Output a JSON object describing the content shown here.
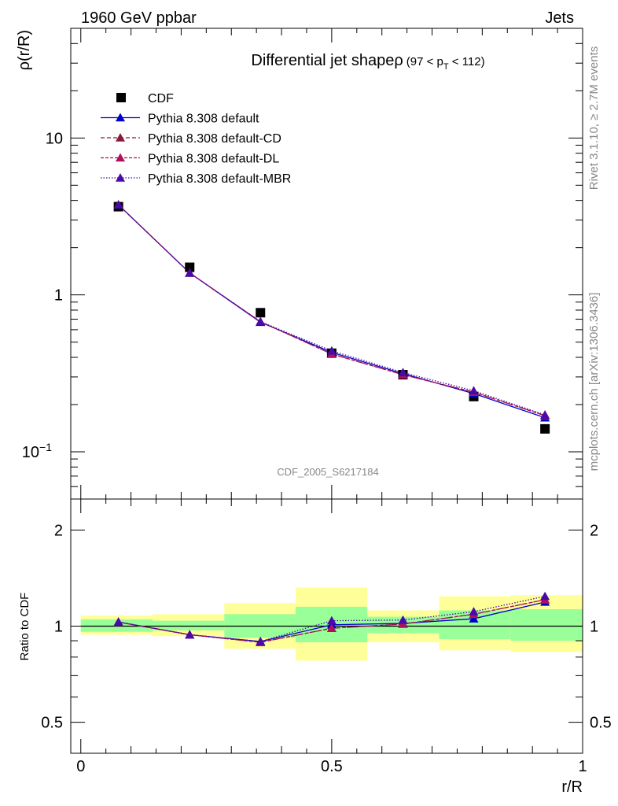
{
  "header": {
    "left": "1960 GeV ppbar",
    "right": "Jets"
  },
  "side_labels": {
    "top": "Rivet 3.1.10, ≥ 2.7M events",
    "bottom": "mcplots.cern.ch [arXiv:1306.3436]"
  },
  "watermark": "CDF_2005_S6217184",
  "chart_data": [
    {
      "type": "scatter",
      "title": "Differential jet shapeρ",
      "title_cut": "(97 < p",
      "title_sub": "T",
      "title_cut_end": " < 112)",
      "ylabel": "ρ(r/R)",
      "yscale": "log",
      "ylim": [
        0.05,
        50
      ],
      "xlim": [
        -0.02,
        1.0
      ],
      "y_ticks": [
        {
          "value": 10,
          "label": "10"
        },
        {
          "value": 1,
          "label": "1"
        },
        {
          "value": 0.1,
          "label": "10",
          "exp": "−1"
        }
      ],
      "x": [
        0.075,
        0.217,
        0.358,
        0.5,
        0.642,
        0.783,
        0.925
      ],
      "series": [
        {
          "name": "CDF",
          "marker": "square",
          "color": "#000000",
          "values": [
            3.65,
            1.5,
            0.77,
            0.425,
            0.31,
            0.225,
            0.14
          ]
        },
        {
          "name": "Pythia 8.308 default",
          "marker": "triangle",
          "color": "#0000cc",
          "dash": "solid",
          "values": [
            3.75,
            1.38,
            0.67,
            0.43,
            0.315,
            0.235,
            0.165
          ]
        },
        {
          "name": "Pythia 8.308 default-CD",
          "marker": "triangle",
          "color": "#8b1a3a",
          "dash": "5,3",
          "values": [
            3.75,
            1.38,
            0.675,
            0.42,
            0.31,
            0.24,
            0.17
          ]
        },
        {
          "name": "Pythia 8.308 default-DL",
          "marker": "triangle",
          "color": "#b0105a",
          "dash": "4,2",
          "values": [
            3.75,
            1.38,
            0.675,
            0.42,
            0.31,
            0.24,
            0.17
          ]
        },
        {
          "name": "Pythia 8.308 default-MBR",
          "marker": "triangle",
          "color": "#4a0aa8",
          "dash": "1.5,2",
          "values": [
            3.75,
            1.38,
            0.675,
            0.44,
            0.32,
            0.245,
            0.172
          ]
        }
      ]
    },
    {
      "type": "line",
      "ylabel": "Ratio to CDF",
      "xlabel": "r/R",
      "yscale": "log",
      "ylim": [
        0.4,
        2.5
      ],
      "xlim": [
        -0.02,
        1.0
      ],
      "x_ticks": [
        {
          "value": 0,
          "label": "0"
        },
        {
          "value": 0.5,
          "label": "0.5"
        },
        {
          "value": 1,
          "label": "1"
        }
      ],
      "y_ticks": [
        {
          "value": 2,
          "label": "2"
        },
        {
          "value": 1,
          "label": "1"
        },
        {
          "value": 0.5,
          "label": "0.5"
        }
      ],
      "bands": {
        "edges": [
          0.0,
          0.143,
          0.286,
          0.428,
          0.571,
          0.714,
          0.857,
          1.0
        ],
        "yellow": [
          [
            0.94,
            1.08
          ],
          [
            0.93,
            1.09
          ],
          [
            0.85,
            1.18
          ],
          [
            0.78,
            1.32
          ],
          [
            0.89,
            1.12
          ],
          [
            0.84,
            1.24
          ],
          [
            0.83,
            1.25
          ]
        ],
        "green": [
          [
            0.96,
            1.05
          ],
          [
            0.97,
            1.04
          ],
          [
            0.92,
            1.09
          ],
          [
            0.89,
            1.15
          ],
          [
            0.95,
            1.07
          ],
          [
            0.91,
            1.12
          ],
          [
            0.9,
            1.13
          ]
        ]
      },
      "x": [
        0.075,
        0.217,
        0.358,
        0.5,
        0.642,
        0.783,
        0.925
      ],
      "series": [
        {
          "name": "Pythia 8.308 default",
          "color": "#0000cc",
          "dash": "solid",
          "values": [
            1.03,
            0.94,
            0.895,
            1.01,
            1.02,
            1.055,
            1.19
          ]
        },
        {
          "name": "Pythia 8.308 default-CD",
          "color": "#8b1a3a",
          "dash": "5,3",
          "values": [
            1.03,
            0.94,
            0.89,
            0.985,
            1.015,
            1.09,
            1.21
          ]
        },
        {
          "name": "Pythia 8.308 default-DL",
          "color": "#b0105a",
          "dash": "4,2",
          "values": [
            1.03,
            0.94,
            0.89,
            0.985,
            1.015,
            1.09,
            1.21
          ]
        },
        {
          "name": "Pythia 8.308 default-MBR",
          "color": "#4a0aa8",
          "dash": "1.5,2",
          "values": [
            1.03,
            0.94,
            0.895,
            1.04,
            1.045,
            1.11,
            1.24
          ]
        }
      ]
    }
  ]
}
